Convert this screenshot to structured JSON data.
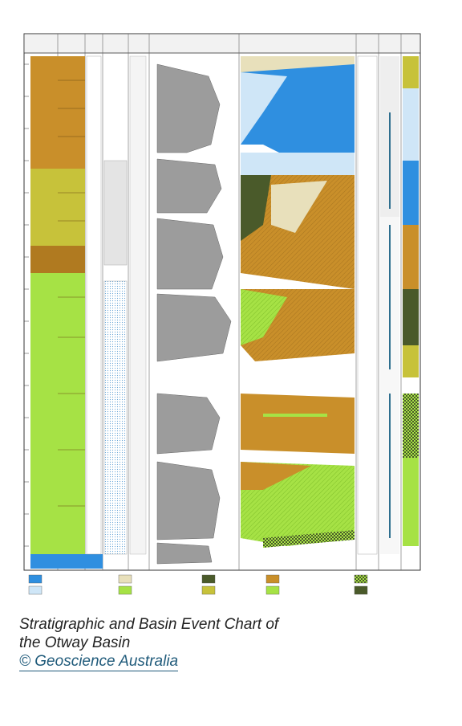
{
  "caption": {
    "line1": "Stratigraphic and Basin Event Chart of",
    "line2": "the Otway Basin",
    "credit": "© Geoscience Australia"
  },
  "colors": {
    "brown": "#c98f2a",
    "olive": "#c7c23a",
    "lime": "#a6e245",
    "sky": "#2f8fe0",
    "pale_sky": "#cfe6f7",
    "grey": "#9c9c9c",
    "dark_green": "#4a5a2a",
    "beige": "#e8e0bb",
    "caption_text": "#222222",
    "link": "#1f5a7a"
  }
}
